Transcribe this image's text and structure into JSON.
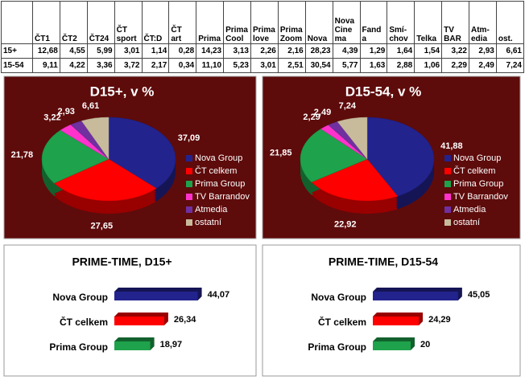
{
  "table": {
    "header": [
      "ČT1",
      "ČT2",
      "ČT24",
      "ČT sport",
      "ČT:D",
      "ČT art",
      "Prima",
      "Prima Cool",
      "Prima love",
      "Prima Zoom",
      "Nova",
      "Nova Cinema",
      "Fanda",
      "Smí-chov",
      "Telka",
      "TV BAR",
      "Atm-edia",
      "ost."
    ],
    "rows": [
      [
        "15+",
        "12,68",
        "4,55",
        "5,99",
        "3,01",
        "1,14",
        "0,28",
        "14,23",
        "3,13",
        "2,26",
        "2,16",
        "28,23",
        "4,39",
        "1,29",
        "1,64",
        "1,54",
        "3,22",
        "2,93",
        "6,61"
      ],
      [
        "15-54",
        "9,11",
        "4,22",
        "3,36",
        "3,72",
        "2,17",
        "0,34",
        "11,10",
        "5,23",
        "3,01",
        "2,51",
        "30,54",
        "5,77",
        "1,63",
        "2,88",
        "1,06",
        "2,29",
        "2,49",
        "7,24"
      ]
    ]
  },
  "chart_data": [
    {
      "type": "pie",
      "title": "D15+, v %",
      "categories": [
        "Nova Group",
        "ČT celkem",
        "Prima Group",
        "TV Barrandov",
        "Atmedia",
        "ostatní"
      ],
      "colors": [
        "#23238e",
        "#ff0000",
        "#1ea24b",
        "#ff33cc",
        "#7030a0",
        "#c8bb9b"
      ],
      "values": [
        37.09,
        27.65,
        21.78,
        3.22,
        2.93,
        6.61
      ],
      "value_labels": [
        "37,09",
        "27,65",
        "21,78",
        "3,22",
        "2,93",
        "6,61"
      ]
    },
    {
      "type": "pie",
      "title": "D15-54, v %",
      "categories": [
        "Nova Group",
        "ČT celkem",
        "Prima Group",
        "TV Barrandov",
        "Atmedia",
        "ostatní"
      ],
      "colors": [
        "#23238e",
        "#ff0000",
        "#1ea24b",
        "#ff33cc",
        "#7030a0",
        "#c8bb9b"
      ],
      "values": [
        41.88,
        22.92,
        21.85,
        2.29,
        2.49,
        7.24
      ],
      "value_labels": [
        "41,88",
        "22,92",
        "21,85",
        "2,29",
        "2,49",
        "7,24"
      ]
    },
    {
      "type": "bar",
      "title": "PRIME-TIME, D15+",
      "categories": [
        "Nova Group",
        "ČT celkem",
        "Prima Group"
      ],
      "colors": [
        "#23238e",
        "#ff0000",
        "#1ea24b"
      ],
      "values": [
        44.07,
        26.34,
        18.97
      ],
      "value_labels": [
        "44,07",
        "26,34",
        "18,97"
      ]
    },
    {
      "type": "bar",
      "title": "PRIME-TIME, D15-54",
      "categories": [
        "Nova Group",
        "ČT celkem",
        "Prima Group"
      ],
      "colors": [
        "#23238e",
        "#ff0000",
        "#1ea24b"
      ],
      "values": [
        45.05,
        24.29,
        20
      ],
      "value_labels": [
        "45,05",
        "24,29",
        "20"
      ]
    }
  ]
}
